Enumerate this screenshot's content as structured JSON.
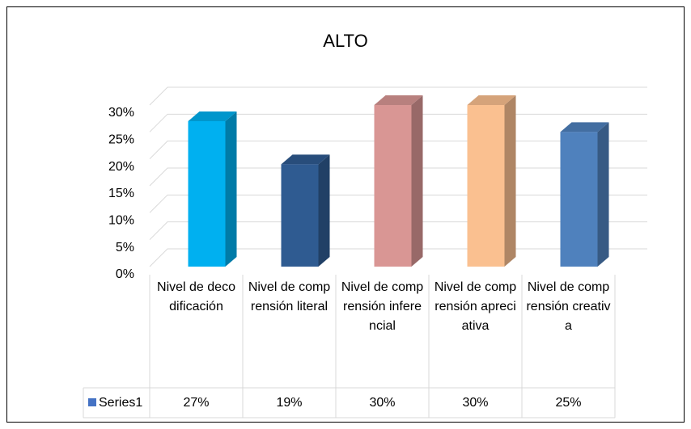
{
  "chart_data": {
    "type": "bar3d",
    "title": "ALTO",
    "categories": [
      "Nivel de decodificación",
      "Nivel de comprensión literal",
      "Nivel de comprensión inferencial",
      "Nivel de comprensión apreciativa",
      "Nivel de comprensión creativa"
    ],
    "series": [
      {
        "name": "Series1",
        "color": "#4472c4",
        "colors": [
          "#00b0f0",
          "#2f5b91",
          "#d99694",
          "#fac090",
          "#4f81bd"
        ],
        "values": [
          27,
          19,
          30,
          30,
          25
        ],
        "value_labels": [
          "27%",
          "19%",
          "30%",
          "30%",
          "25%"
        ]
      }
    ],
    "ylim": [
      0,
      30
    ],
    "yticks": [
      {
        "value": 0,
        "label": "0%"
      },
      {
        "value": 5,
        "label": "5%"
      },
      {
        "value": 10,
        "label": "10%"
      },
      {
        "value": 15,
        "label": "15%"
      },
      {
        "value": 20,
        "label": "20%"
      },
      {
        "value": 25,
        "label": "25%"
      },
      {
        "value": 30,
        "label": "30%"
      }
    ],
    "grid": true,
    "legend": "table"
  }
}
